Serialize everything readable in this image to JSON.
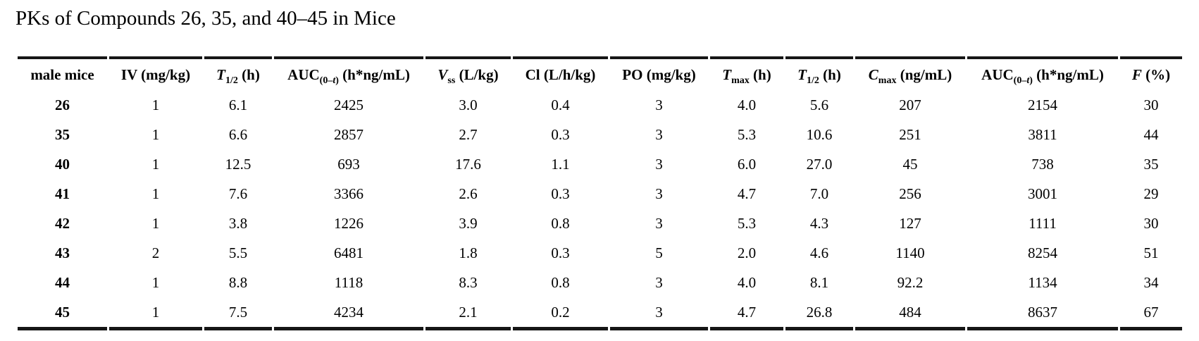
{
  "title": "PKs of Compounds 26, 35, and 40–45 in Mice",
  "table": {
    "field_order": [
      "compound",
      "iv",
      "iv_t_half",
      "iv_auc",
      "vss",
      "cl",
      "po",
      "tmax",
      "po_t_half",
      "cmax",
      "po_auc",
      "f"
    ],
    "columns": [
      {
        "id": "male-mice",
        "base": "male mice",
        "it": "",
        "sub_pre": "",
        "sub_it": "",
        "sub_post": "",
        "unit": ""
      },
      {
        "id": "iv-dose",
        "base": "IV (mg/kg)",
        "it": "",
        "sub_pre": "",
        "sub_it": "",
        "sub_post": "",
        "unit": ""
      },
      {
        "id": "iv-t-half",
        "base": "",
        "it": "T",
        "sub_pre": "1/2",
        "sub_it": "",
        "sub_post": "",
        "unit": " (h)"
      },
      {
        "id": "iv-auc",
        "base": "AUC",
        "it": "",
        "sub_pre": "(0–",
        "sub_it": "t",
        "sub_post": ")",
        "unit": " (h*ng/mL)"
      },
      {
        "id": "vss",
        "base": "",
        "it": "V",
        "sub_pre": "ss",
        "sub_it": "",
        "sub_post": "",
        "unit": " (L/kg)"
      },
      {
        "id": "cl",
        "base": "Cl (L/h/kg)",
        "it": "",
        "sub_pre": "",
        "sub_it": "",
        "sub_post": "",
        "unit": ""
      },
      {
        "id": "po-dose",
        "base": "PO (mg/kg)",
        "it": "",
        "sub_pre": "",
        "sub_it": "",
        "sub_post": "",
        "unit": ""
      },
      {
        "id": "tmax",
        "base": "",
        "it": "T",
        "sub_pre": "max",
        "sub_it": "",
        "sub_post": "",
        "unit": " (h)"
      },
      {
        "id": "po-t-half",
        "base": "",
        "it": "T",
        "sub_pre": "1/2",
        "sub_it": "",
        "sub_post": "",
        "unit": " (h)"
      },
      {
        "id": "cmax",
        "base": "",
        "it": "C",
        "sub_pre": "max",
        "sub_it": "",
        "sub_post": "",
        "unit": " (ng/mL)"
      },
      {
        "id": "po-auc",
        "base": "AUC",
        "it": "",
        "sub_pre": "(0–",
        "sub_it": "t",
        "sub_post": ")",
        "unit": " (h*ng/mL)"
      },
      {
        "id": "f-percent",
        "base": "",
        "it": "F",
        "sub_pre": "",
        "sub_it": "",
        "sub_post": "",
        "unit": " (%)"
      }
    ],
    "rows": [
      {
        "compound": "26",
        "iv": "1",
        "iv_t_half": "6.1",
        "iv_auc": "2425",
        "vss": "3.0",
        "cl": "0.4",
        "po": "3",
        "tmax": "4.0",
        "po_t_half": "5.6",
        "cmax": "207",
        "po_auc": "2154",
        "f": "30"
      },
      {
        "compound": "35",
        "iv": "1",
        "iv_t_half": "6.6",
        "iv_auc": "2857",
        "vss": "2.7",
        "cl": "0.3",
        "po": "3",
        "tmax": "5.3",
        "po_t_half": "10.6",
        "cmax": "251",
        "po_auc": "3811",
        "f": "44"
      },
      {
        "compound": "40",
        "iv": "1",
        "iv_t_half": "12.5",
        "iv_auc": "693",
        "vss": "17.6",
        "cl": "1.1",
        "po": "3",
        "tmax": "6.0",
        "po_t_half": "27.0",
        "cmax": "45",
        "po_auc": "738",
        "f": "35"
      },
      {
        "compound": "41",
        "iv": "1",
        "iv_t_half": "7.6",
        "iv_auc": "3366",
        "vss": "2.6",
        "cl": "0.3",
        "po": "3",
        "tmax": "4.7",
        "po_t_half": "7.0",
        "cmax": "256",
        "po_auc": "3001",
        "f": "29"
      },
      {
        "compound": "42",
        "iv": "1",
        "iv_t_half": "3.8",
        "iv_auc": "1226",
        "vss": "3.9",
        "cl": "0.8",
        "po": "3",
        "tmax": "5.3",
        "po_t_half": "4.3",
        "cmax": "127",
        "po_auc": "1111",
        "f": "30"
      },
      {
        "compound": "43",
        "iv": "2",
        "iv_t_half": "5.5",
        "iv_auc": "6481",
        "vss": "1.8",
        "cl": "0.3",
        "po": "5",
        "tmax": "2.0",
        "po_t_half": "4.6",
        "cmax": "1140",
        "po_auc": "8254",
        "f": "51"
      },
      {
        "compound": "44",
        "iv": "1",
        "iv_t_half": "8.8",
        "iv_auc": "1118",
        "vss": "8.3",
        "cl": "0.8",
        "po": "3",
        "tmax": "4.0",
        "po_t_half": "8.1",
        "cmax": "92.2",
        "po_auc": "1134",
        "f": "34"
      },
      {
        "compound": "45",
        "iv": "1",
        "iv_t_half": "7.5",
        "iv_auc": "4234",
        "vss": "2.1",
        "cl": "0.2",
        "po": "3",
        "tmax": "4.7",
        "po_t_half": "26.8",
        "cmax": "484",
        "po_auc": "8637",
        "f": "67"
      }
    ]
  }
}
